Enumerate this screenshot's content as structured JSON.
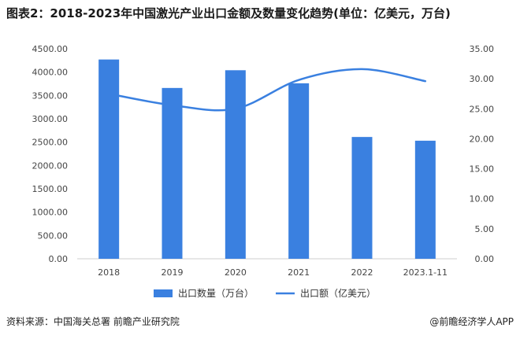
{
  "title": "图表2：2018-2023年中国激光产业出口金额及数量变化趋势(单位：亿美元，万台)",
  "footer": {
    "source": "资料来源：中国海关总署 前瞻产业研究院",
    "brand": "@前瞻经济学人APP"
  },
  "colors": {
    "bar": "#3a80e0",
    "line": "#3a80e0"
  },
  "chart_data": {
    "type": "bar+line",
    "categories": [
      "2018",
      "2019",
      "2020",
      "2021",
      "2022",
      "2023.1-11"
    ],
    "series": [
      {
        "name": "出口数量（万台）",
        "type": "bar",
        "axis": "left",
        "values": [
          4270,
          3660,
          4040,
          3760,
          2610,
          2530
        ]
      },
      {
        "name": "出口额（亿美元）",
        "type": "line",
        "axis": "right",
        "values": [
          27.5,
          25.6,
          25.0,
          29.8,
          31.6,
          29.6
        ]
      }
    ],
    "y_left": {
      "min": 0,
      "max": 4500,
      "step": 500,
      "ticks": [
        "0.00",
        "500.00",
        "1000.00",
        "1500.00",
        "2000.00",
        "2500.00",
        "3000.00",
        "3500.00",
        "4000.00",
        "4500.00"
      ]
    },
    "y_right": {
      "min": 0,
      "max": 35,
      "step": 5,
      "ticks": [
        "0.00",
        "5.00",
        "10.00",
        "15.00",
        "20.00",
        "25.00",
        "30.00",
        "35.00"
      ]
    },
    "legend_position": "bottom",
    "grid": false
  }
}
